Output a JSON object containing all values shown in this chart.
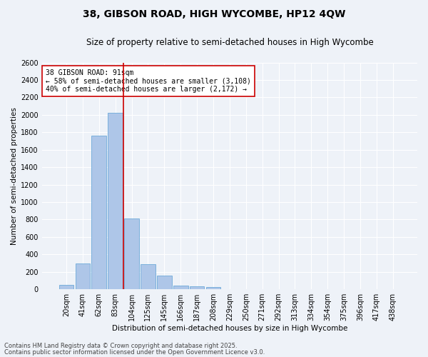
{
  "title": "38, GIBSON ROAD, HIGH WYCOMBE, HP12 4QW",
  "subtitle": "Size of property relative to semi-detached houses in High Wycombe",
  "xlabel": "Distribution of semi-detached houses by size in High Wycombe",
  "ylabel": "Number of semi-detached properties",
  "categories": [
    "20sqm",
    "41sqm",
    "62sqm",
    "83sqm",
    "104sqm",
    "125sqm",
    "145sqm",
    "166sqm",
    "187sqm",
    "208sqm",
    "229sqm",
    "250sqm",
    "271sqm",
    "292sqm",
    "313sqm",
    "334sqm",
    "354sqm",
    "375sqm",
    "396sqm",
    "417sqm",
    "438sqm"
  ],
  "values": [
    50,
    295,
    1760,
    2020,
    815,
    290,
    155,
    40,
    35,
    25,
    0,
    0,
    0,
    0,
    0,
    0,
    0,
    0,
    0,
    0,
    0
  ],
  "bar_color": "#aec6e8",
  "bar_edge_color": "#5a9fd4",
  "vline_x_idx": 3,
  "vline_color": "#cc0000",
  "annotation_title": "38 GIBSON ROAD: 91sqm",
  "annotation_line1": "← 58% of semi-detached houses are smaller (3,108)",
  "annotation_line2": "40% of semi-detached houses are larger (2,172) →",
  "annotation_box_color": "#ffffff",
  "annotation_box_edge": "#cc0000",
  "ylim": [
    0,
    2600
  ],
  "yticks": [
    0,
    200,
    400,
    600,
    800,
    1000,
    1200,
    1400,
    1600,
    1800,
    2000,
    2200,
    2400,
    2600
  ],
  "footnote1": "Contains HM Land Registry data © Crown copyright and database right 2025.",
  "footnote2": "Contains public sector information licensed under the Open Government Licence v3.0.",
  "bg_color": "#eef2f8",
  "grid_color": "#ffffff",
  "title_fontsize": 10,
  "subtitle_fontsize": 8.5,
  "axis_label_fontsize": 7.5,
  "tick_fontsize": 7,
  "annotation_fontsize": 7,
  "footnote_fontsize": 6
}
